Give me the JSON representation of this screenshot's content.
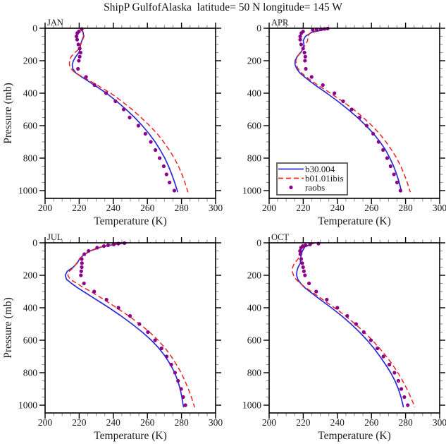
{
  "title": "ShipP GulfofAlaska  latitude= 50 N longitude= 145 W",
  "colors": {
    "model_b30": "#2b2bd5",
    "model_b01": "#ee2222",
    "obs": "#8b008b",
    "frame": "#000000",
    "major_tick": "#000000",
    "minor_tick": "#979797",
    "text": "#1a1a1a",
    "legend_border": "#444444",
    "legend_fill": "#ffffff"
  },
  "chart_data": {
    "type": "line",
    "title": "ShipP GulfofAlaska  latitude= 50 N longitude= 145 W",
    "xlabel": "Temperature (K)",
    "ylabel": "Pressure (mb)",
    "xlim": [
      200,
      300
    ],
    "ylim_mb": [
      0,
      1048
    ],
    "xticks": [
      200,
      220,
      240,
      260,
      280,
      300
    ],
    "yticks": [
      0,
      200,
      400,
      600,
      800,
      1000
    ],
    "x_minor_step": 5,
    "y_minor_step": 50,
    "grid": false,
    "legend_position": "inside-apr-panel-lower-left",
    "series_defs": [
      {
        "id": "b30",
        "label": "b30.004",
        "style": "solid",
        "color": "#2b2bd5"
      },
      {
        "id": "b01",
        "label": "b01.01ibis",
        "style": "dashed",
        "color": "#ee2222"
      },
      {
        "id": "raobs",
        "label": "raobs",
        "style": "dots",
        "color": "#8b008b"
      }
    ],
    "panels": [
      {
        "month": "JAN",
        "profiles": {
          "b30": {
            "p": [
              0,
              10,
              25,
              50,
              75,
              100,
              125,
              150,
              175,
              200,
              225,
              250,
              275,
              300,
              325,
              350,
              400,
              450,
              500,
              550,
              600,
              650,
              700,
              750,
              800,
              850,
              900,
              950,
              1000,
              1010
            ],
            "t": [
              220.5,
              221.2,
              222.3,
              222.6,
              221.6,
              220.8,
              220.6,
              219.8,
              218.0,
              216.6,
              215.9,
              216.3,
              218.0,
              221.5,
              225.2,
              228.8,
              236.0,
              242.0,
              247.5,
              252.5,
              257.0,
              261.0,
              264.5,
              267.5,
              270.2,
              272.4,
              274.3,
              276.0,
              277.5,
              277.7
            ]
          },
          "b01": {
            "p": [
              0,
              10,
              25,
              50,
              75,
              100,
              125,
              150,
              175,
              200,
              225,
              250,
              275,
              300,
              325,
              350,
              400,
              450,
              500,
              550,
              600,
              650,
              700,
              750,
              800,
              850,
              900,
              950,
              1000,
              1010
            ],
            "t": [
              220.8,
              221.4,
              222.5,
              222.8,
              221.9,
              220.9,
              220.2,
              217.5,
              215.3,
              214.4,
              214.2,
              215.3,
              217.6,
              222.2,
              226.5,
              230.5,
              238.5,
              245.0,
              251.0,
              256.3,
              261.3,
              265.8,
              269.5,
              272.8,
              275.8,
              278.2,
              280.3,
              282.0,
              283.5,
              283.8
            ]
          },
          "raobs": {
            "p": [
              5,
              20,
              30,
              50,
              70,
              100,
              125,
              150,
              175,
              200,
              250,
              300,
              350,
              400,
              450,
              500,
              550,
              600,
              650,
              700,
              750,
              800,
              850,
              900,
              950,
              1000
            ],
            "t": [
              221.5,
              219.8,
              218.9,
              218.4,
              218.8,
              219.5,
              220.3,
              220.8,
              220.3,
              219.8,
              219.3,
              224.0,
              229.0,
              235.8,
              241.3,
              246.1,
              249.6,
              254.7,
              258.8,
              262.0,
              264.7,
              267.2,
              269.6,
              271.2,
              273.0,
              275.8
            ]
          }
        }
      },
      {
        "month": "APR",
        "profiles": {
          "b30": {
            "p": [
              0,
              10,
              25,
              50,
              75,
              100,
              125,
              150,
              175,
              200,
              225,
              250,
              275,
              300,
              325,
              350,
              400,
              450,
              500,
              550,
              600,
              650,
              700,
              750,
              800,
              850,
              900,
              950,
              1000,
              1010
            ],
            "t": [
              235.2,
              231.8,
              225.0,
              221.3,
              220.0,
              220.4,
              219.9,
              218.5,
              216.4,
              215.2,
              215.2,
              216.2,
              218.0,
              220.8,
              223.8,
              227.0,
              233.8,
              240.3,
              246.3,
              251.8,
              256.8,
              261.3,
              265.0,
              268.3,
              270.8,
              273.0,
              274.8,
              276.3,
              277.5,
              277.7
            ]
          },
          "b01": {
            "p": [
              0,
              10,
              25,
              50,
              75,
              100,
              125,
              150,
              175,
              200,
              225,
              250,
              275,
              300,
              325,
              350,
              400,
              450,
              500,
              550,
              600,
              650,
              700,
              750,
              800,
              850,
              900,
              950,
              1000,
              1010
            ],
            "t": [
              233.5,
              230.0,
              224.5,
              222.5,
              222.6,
              221.5,
              219.8,
              218.2,
              216.5,
              215.6,
              215.9,
              217.0,
              219.0,
              221.8,
              225.0,
              228.5,
              236.0,
              243.0,
              249.5,
              255.2,
              260.3,
              264.8,
              268.5,
              271.8,
              274.8,
              277.2,
              279.2,
              281.0,
              282.5,
              282.8
            ]
          },
          "raobs": {
            "p": [
              2,
              4,
              6,
              8,
              10,
              20,
              30,
              50,
              70,
              100,
              125,
              150,
              175,
              200,
              250,
              300,
              350,
              400,
              450,
              500,
              550,
              600,
              650,
              700,
              750,
              800,
              850,
              900,
              950,
              1000
            ],
            "t": [
              234.3,
              232.5,
              230.4,
              227.9,
              225.6,
              219.9,
              218.9,
              218.2,
              218.2,
              218.8,
              219.9,
              220.7,
              221.2,
              221.0,
              221.5,
              224.9,
              231.5,
              238.3,
              243.4,
              248.4,
              253.0,
              257.2,
              261.0,
              264.2,
              266.8,
              269.2,
              271.2,
              273.2,
              275.0,
              277.0
            ]
          }
        }
      },
      {
        "month": "JUL",
        "profiles": {
          "b30": {
            "p": [
              0,
              10,
              25,
              50,
              75,
              100,
              125,
              150,
              175,
              200,
              225,
              250,
              275,
              300,
              325,
              350,
              400,
              450,
              500,
              550,
              600,
              650,
              700,
              750,
              800,
              850,
              900,
              950,
              1000,
              1013
            ],
            "t": [
              248.0,
              240.5,
              233.0,
              226.5,
              222.5,
              220.2,
              218.8,
              216.5,
              213.0,
              211.8,
              212.6,
              215.5,
              218.8,
              222.5,
              226.3,
              230.0,
              237.5,
              244.5,
              251.0,
              257.0,
              262.3,
              266.8,
              270.5,
              273.5,
              276.0,
              277.8,
              279.2,
              280.2,
              281.0,
              281.3
            ]
          },
          "b01": {
            "p": [
              0,
              10,
              25,
              50,
              75,
              100,
              125,
              150,
              175,
              200,
              225,
              250,
              275,
              300,
              325,
              350,
              400,
              450,
              500,
              550,
              600,
              650,
              700,
              750,
              800,
              850,
              900,
              950,
              1000,
              1013
            ],
            "t": [
              247.5,
              240.0,
              232.5,
              226.0,
              222.3,
              220.0,
              218.5,
              216.8,
              214.2,
              213.3,
              214.8,
              218.5,
              222.5,
              226.8,
              230.8,
              234.5,
              242.0,
              249.0,
              255.5,
              261.3,
              266.3,
              270.5,
              274.0,
              277.0,
              279.8,
              282.0,
              284.0,
              285.8,
              287.3,
              287.6
            ]
          },
          "raobs": {
            "p": [
              2,
              5,
              10,
              15,
              20,
              30,
              50,
              70,
              100,
              125,
              150,
              175,
              200,
              250,
              300,
              350,
              400,
              450,
              500,
              550,
              600,
              650,
              700,
              750,
              800,
              850,
              900,
              950,
              1000
            ],
            "t": [
              246.5,
              243.0,
              240.3,
              237.0,
              234.5,
              230.5,
              225.5,
              223.0,
              221.5,
              221.6,
              221.5,
              221.2,
              221.0,
              222.8,
              228.8,
              236.0,
              243.0,
              249.8,
              255.3,
              260.3,
              264.5,
              268.3,
              271.3,
              274.0,
              276.2,
              278.0,
              279.8,
              281.0,
              282.3
            ]
          }
        }
      },
      {
        "month": "OCT",
        "profiles": {
          "b30": {
            "p": [
              0,
              10,
              25,
              50,
              75,
              100,
              125,
              150,
              175,
              200,
              225,
              250,
              275,
              300,
              325,
              350,
              400,
              450,
              500,
              550,
              600,
              650,
              700,
              750,
              800,
              850,
              900,
              950,
              1000,
              1013
            ],
            "t": [
              227.0,
              224.0,
              221.0,
              219.5,
              218.7,
              218.5,
              218.3,
              217.0,
              216.3,
              216.1,
              216.8,
              218.5,
              220.8,
              223.8,
              226.9,
              230.0,
              236.5,
              242.5,
              248.0,
              253.0,
              257.5,
              261.5,
              265.0,
              268.3,
              271.3,
              273.8,
              275.8,
              277.3,
              278.5,
              278.7
            ]
          },
          "b01": {
            "p": [
              0,
              10,
              25,
              50,
              75,
              100,
              125,
              150,
              175,
              200,
              225,
              250,
              275,
              300,
              325,
              350,
              400,
              450,
              500,
              550,
              600,
              650,
              700,
              750,
              800,
              850,
              900,
              950,
              1000,
              1013
            ],
            "t": [
              226.5,
              223.5,
              220.5,
              218.8,
              218.0,
              217.0,
              214.8,
              213.8,
              213.5,
              214.3,
              215.8,
              218.3,
              221.3,
              224.8,
              228.2,
              231.5,
              238.3,
              244.8,
              250.5,
              255.8,
              260.5,
              264.8,
              268.8,
              272.3,
              275.5,
              278.3,
              280.8,
              283.0,
              285.0,
              285.3
            ]
          },
          "raobs": {
            "p": [
              5,
              10,
              15,
              20,
              30,
              50,
              70,
              100,
              125,
              150,
              175,
              200,
              250,
              300,
              350,
              400,
              450,
              500,
              550,
              600,
              650,
              700,
              750,
              800,
              850,
              900,
              950,
              1000
            ],
            "t": [
              228.9,
              224.0,
              221.3,
              219.7,
              218.7,
              218.1,
              218.3,
              218.8,
              219.4,
              219.9,
              220.4,
              221.0,
              223.4,
              227.6,
              233.8,
              240.0,
              245.8,
              251.0,
              255.5,
              259.7,
              263.5,
              267.0,
              270.5,
              273.5,
              275.8,
              277.5,
              279.3,
              281.3
            ]
          }
        }
      }
    ]
  }
}
